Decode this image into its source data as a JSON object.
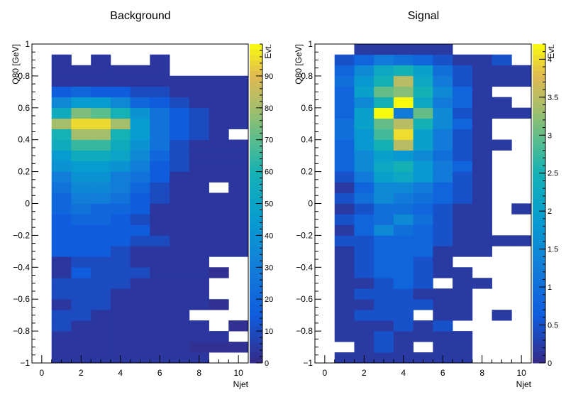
{
  "chart_data": [
    {
      "type": "heatmap",
      "title": "Background",
      "xlabel": "Njet",
      "ylabel": "Q80 [GeV]",
      "zlabel": "Evt.",
      "xlim": [
        -0.5,
        10.5
      ],
      "ylim": [
        -1,
        1
      ],
      "zlim": [
        0,
        100
      ],
      "x_ticks": [
        0,
        2,
        4,
        6,
        8,
        10
      ],
      "y_ticks": [
        -1,
        -0.8,
        -0.6,
        -0.4,
        -0.2,
        0,
        0.2,
        0.4,
        0.6,
        0.8,
        1
      ],
      "z_ticks": [
        0,
        10,
        20,
        30,
        40,
        50,
        60,
        70,
        80,
        90
      ],
      "x_bin_centers": [
        1,
        2,
        3,
        4,
        5,
        6,
        7,
        8,
        9,
        10
      ],
      "y_bin_width": 0.0667,
      "values": [
        [
          4,
          4,
          4,
          4,
          4,
          4,
          4,
          4,
          0,
          0
        ],
        [
          4,
          4,
          4,
          4,
          4,
          4,
          4,
          2,
          2,
          2
        ],
        [
          4,
          4,
          4,
          4,
          4,
          4,
          4,
          4,
          4,
          0
        ],
        [
          10,
          4,
          4,
          4,
          4,
          4,
          4,
          4,
          0,
          2
        ],
        [
          10,
          10,
          4,
          4,
          4,
          4,
          4,
          0,
          0,
          0
        ],
        [
          4,
          10,
          10,
          4,
          4,
          4,
          4,
          4,
          2,
          0
        ],
        [
          10,
          10,
          10,
          4,
          4,
          4,
          4,
          4,
          0,
          0
        ],
        [
          10,
          10,
          10,
          10,
          4,
          4,
          4,
          4,
          0,
          0
        ],
        [
          4,
          15,
          10,
          10,
          10,
          4,
          4,
          4,
          2,
          0
        ],
        [
          4,
          10,
          10,
          10,
          4,
          4,
          4,
          4,
          0,
          0
        ],
        [
          15,
          15,
          15,
          10,
          4,
          4,
          4,
          4,
          4,
          4
        ],
        [
          15,
          15,
          15,
          15,
          10,
          10,
          4,
          4,
          4,
          4
        ],
        [
          15,
          15,
          15,
          15,
          15,
          4,
          4,
          4,
          4,
          4
        ],
        [
          15,
          20,
          20,
          15,
          10,
          4,
          4,
          4,
          4,
          4
        ],
        [
          20,
          25,
          20,
          20,
          15,
          4,
          4,
          4,
          4,
          4
        ],
        [
          20,
          30,
          30,
          25,
          15,
          10,
          4,
          4,
          4,
          4
        ],
        [
          25,
          35,
          35,
          30,
          20,
          10,
          4,
          4,
          0,
          4
        ],
        [
          30,
          40,
          40,
          30,
          25,
          15,
          4,
          4,
          4,
          4
        ],
        [
          40,
          45,
          45,
          40,
          30,
          15,
          10,
          4,
          4,
          4
        ],
        [
          45,
          55,
          55,
          50,
          35,
          20,
          10,
          4,
          4,
          4
        ],
        [
          55,
          65,
          65,
          55,
          40,
          25,
          10,
          4,
          4,
          4
        ],
        [
          60,
          80,
          80,
          60,
          45,
          25,
          15,
          10,
          4,
          0
        ],
        [
          80,
          95,
          95,
          80,
          45,
          25,
          15,
          10,
          4,
          4
        ],
        [
          55,
          75,
          70,
          60,
          40,
          25,
          15,
          10,
          4,
          4
        ],
        [
          35,
          45,
          45,
          35,
          20,
          15,
          10,
          4,
          4,
          4
        ],
        [
          15,
          20,
          15,
          15,
          10,
          10,
          4,
          4,
          4,
          4
        ],
        [
          4,
          4,
          4,
          4,
          4,
          4,
          4,
          4,
          4,
          4
        ],
        [
          4,
          4,
          4,
          4,
          4,
          4,
          0,
          0,
          0,
          0
        ],
        [
          4,
          0,
          4,
          0,
          0,
          4,
          0,
          0,
          0,
          0
        ]
      ]
    },
    {
      "type": "heatmap",
      "title": "Signal",
      "xlabel": "Njet",
      "ylabel": "Q80 [GeV]",
      "zlabel": "Evt.",
      "xlim": [
        -0.5,
        10.5
      ],
      "ylim": [
        -1,
        1
      ],
      "zlim": [
        0,
        4.2
      ],
      "x_ticks": [
        0,
        2,
        4,
        6,
        8,
        10
      ],
      "y_ticks": [
        -1,
        -0.8,
        -0.6,
        -0.4,
        -0.2,
        0,
        0.2,
        0.4,
        0.6,
        0.8,
        1
      ],
      "z_ticks": [
        0,
        0.5,
        1,
        1.5,
        2,
        2.5,
        3,
        3.5,
        4
      ],
      "x_bin_centers": [
        1,
        2,
        3,
        4,
        5,
        6,
        7,
        8,
        9,
        10
      ],
      "y_bin_width": 0.0667,
      "values": [
        [
          0.2,
          0.2,
          0.2,
          0.2,
          0.2,
          0.2,
          0.2,
          0,
          0,
          0
        ],
        [
          0,
          0.2,
          0.5,
          0.2,
          0,
          0.2,
          0.2,
          0,
          0,
          0
        ],
        [
          0.2,
          0.2,
          0.5,
          0.2,
          0.2,
          0.2,
          0.2,
          0,
          0,
          0
        ],
        [
          0.2,
          0.2,
          0.2,
          0.5,
          0.2,
          0.5,
          0,
          0,
          0,
          0
        ],
        [
          0.2,
          0.5,
          0.5,
          0.5,
          0,
          0.2,
          0.2,
          0,
          0.2,
          0
        ],
        [
          0.2,
          0.2,
          0.5,
          0.5,
          0.5,
          0.2,
          0.2,
          0,
          0,
          0
        ],
        [
          0.2,
          0.5,
          0.5,
          0.5,
          0.2,
          0.2,
          0.2,
          0,
          0,
          0
        ],
        [
          0.2,
          0.2,
          0.5,
          0.8,
          0.5,
          0,
          0.2,
          0.2,
          0,
          0
        ],
        [
          0.2,
          0.5,
          0.8,
          0.8,
          0.5,
          0.2,
          0.2,
          0,
          0,
          0
        ],
        [
          0.2,
          0.5,
          0.8,
          0.8,
          0.5,
          0.2,
          0,
          0,
          0,
          0
        ],
        [
          0.2,
          0.5,
          0.8,
          0.8,
          0.8,
          0.2,
          0.2,
          0.2,
          0,
          0
        ],
        [
          0.5,
          0.5,
          0.8,
          0.8,
          0.8,
          0.5,
          0.2,
          0.2,
          0.2,
          0.2
        ],
        [
          0.2,
          0.8,
          1.5,
          1.0,
          0.8,
          0.5,
          0.2,
          0.2,
          0,
          0
        ],
        [
          0.5,
          0.8,
          1.0,
          1.5,
          1.0,
          0.5,
          0.2,
          0.2,
          0,
          0
        ],
        [
          0.2,
          0.5,
          1.0,
          1.0,
          0.8,
          0.5,
          0.2,
          0.2,
          0,
          0.2
        ],
        [
          0.5,
          1.0,
          1.5,
          1.2,
          1.0,
          0.8,
          0.5,
          0.2,
          0,
          0
        ],
        [
          0.2,
          0.8,
          1.5,
          1.5,
          1.2,
          0.8,
          0.5,
          0.2,
          0,
          0
        ],
        [
          0.5,
          1.2,
          2.0,
          2.2,
          1.8,
          1.2,
          0.5,
          0.2,
          0,
          0
        ],
        [
          0.8,
          1.5,
          2.2,
          2.5,
          1.8,
          1.2,
          0.8,
          0.2,
          0,
          0
        ],
        [
          0.8,
          1.5,
          2.0,
          1.8,
          1.5,
          1.0,
          0.5,
          0.2,
          0,
          0
        ],
        [
          0.8,
          1.8,
          2.5,
          3.5,
          2.0,
          1.2,
          0.5,
          0.2,
          0.2,
          0
        ],
        [
          1.0,
          1.8,
          2.8,
          4.0,
          2.0,
          1.2,
          0.5,
          0.2,
          0,
          0
        ],
        [
          1.0,
          2.0,
          3.0,
          3.5,
          2.5,
          1.5,
          0.8,
          0.2,
          0,
          0
        ],
        [
          0.8,
          2.0,
          4.2,
          1.2,
          3.0,
          1.5,
          0.5,
          0.2,
          0.2,
          0.2
        ],
        [
          0.8,
          1.5,
          2.5,
          4.2,
          2.2,
          1.2,
          0.8,
          0.2,
          0.2,
          0
        ],
        [
          0.8,
          2.0,
          3.0,
          3.2,
          2.5,
          1.5,
          0.8,
          0.2,
          0,
          0
        ],
        [
          1.0,
          1.8,
          2.5,
          3.5,
          2.2,
          1.2,
          0.5,
          0.2,
          0.2,
          0.2
        ],
        [
          0.8,
          1.5,
          2.2,
          2.5,
          2.0,
          1.0,
          0.5,
          0.2,
          0.2,
          0.2
        ],
        [
          0.5,
          0.8,
          1.2,
          1.0,
          0.8,
          0.5,
          0.2,
          0.2,
          0.5,
          0
        ],
        [
          0,
          0.2,
          0.2,
          0.2,
          0.2,
          0.2,
          0,
          0,
          0,
          0
        ]
      ]
    }
  ]
}
